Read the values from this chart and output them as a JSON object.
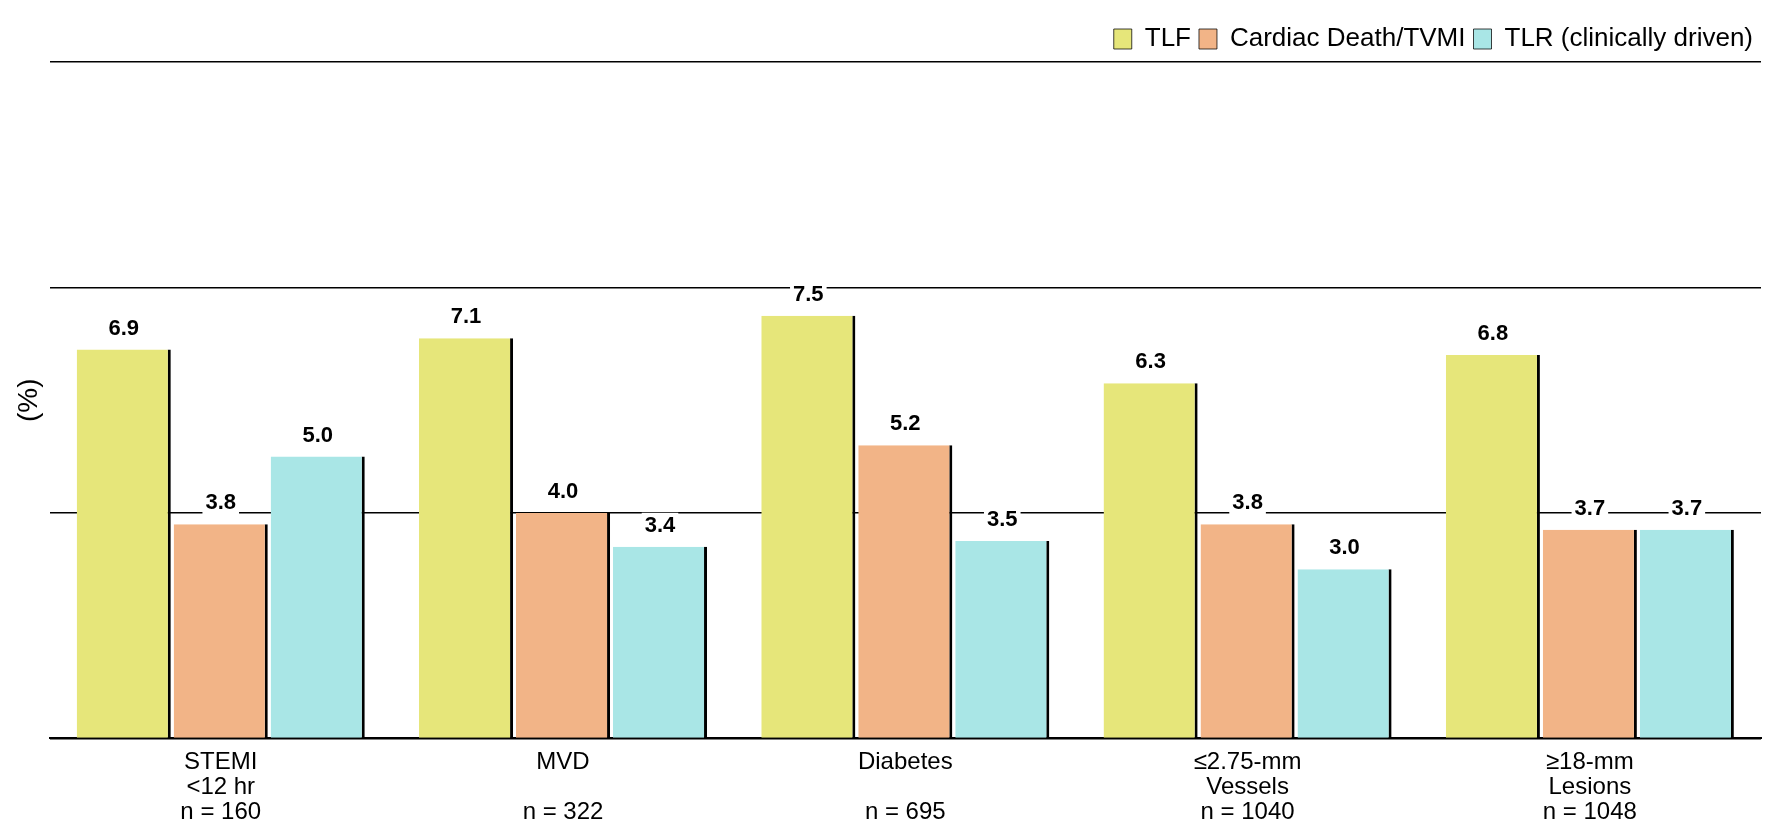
{
  "chart_data": {
    "type": "bar",
    "ylabel": "(%)",
    "categories": [
      "STEMI\n<12 hr\nn = 160",
      "MVD\n\nn = 322",
      "Diabetes\n\nn = 695",
      "≤2.75-mm\nVessels\nn = 1040",
      "≥18-mm\nLesions\nn = 1048"
    ],
    "series": [
      {
        "name": "TLF",
        "color": "#e6e67a",
        "values": [
          6.9,
          7.1,
          7.5,
          6.3,
          6.8
        ],
        "value_labels": [
          "6.9",
          "7.1",
          "7.5",
          "6.3",
          "6.8"
        ]
      },
      {
        "name": "Cardiac Death/TVMI",
        "color": "#f2b487",
        "values": [
          3.8,
          4.0,
          5.2,
          3.8,
          3.7
        ],
        "value_labels": [
          "3.8",
          "4.0",
          "5.2",
          "3.8",
          "3.7"
        ]
      },
      {
        "name": "TLR (clinically driven)",
        "color": "#a9e6e6",
        "values": [
          5.0,
          3.4,
          3.5,
          3.0,
          3.7
        ],
        "value_labels": [
          "5.0",
          "3.4",
          "3.5",
          "3.0",
          "3.7"
        ]
      }
    ],
    "ylim": [
      0,
      12
    ],
    "yticks": [
      {
        "value": 0,
        "label": null
      },
      {
        "value": 4,
        "label": null
      },
      {
        "value": 8,
        "label": null
      },
      {
        "value": 12,
        "label": null
      }
    ],
    "tick_labels": "x",
    "grid": "y",
    "legend": "top right"
  }
}
